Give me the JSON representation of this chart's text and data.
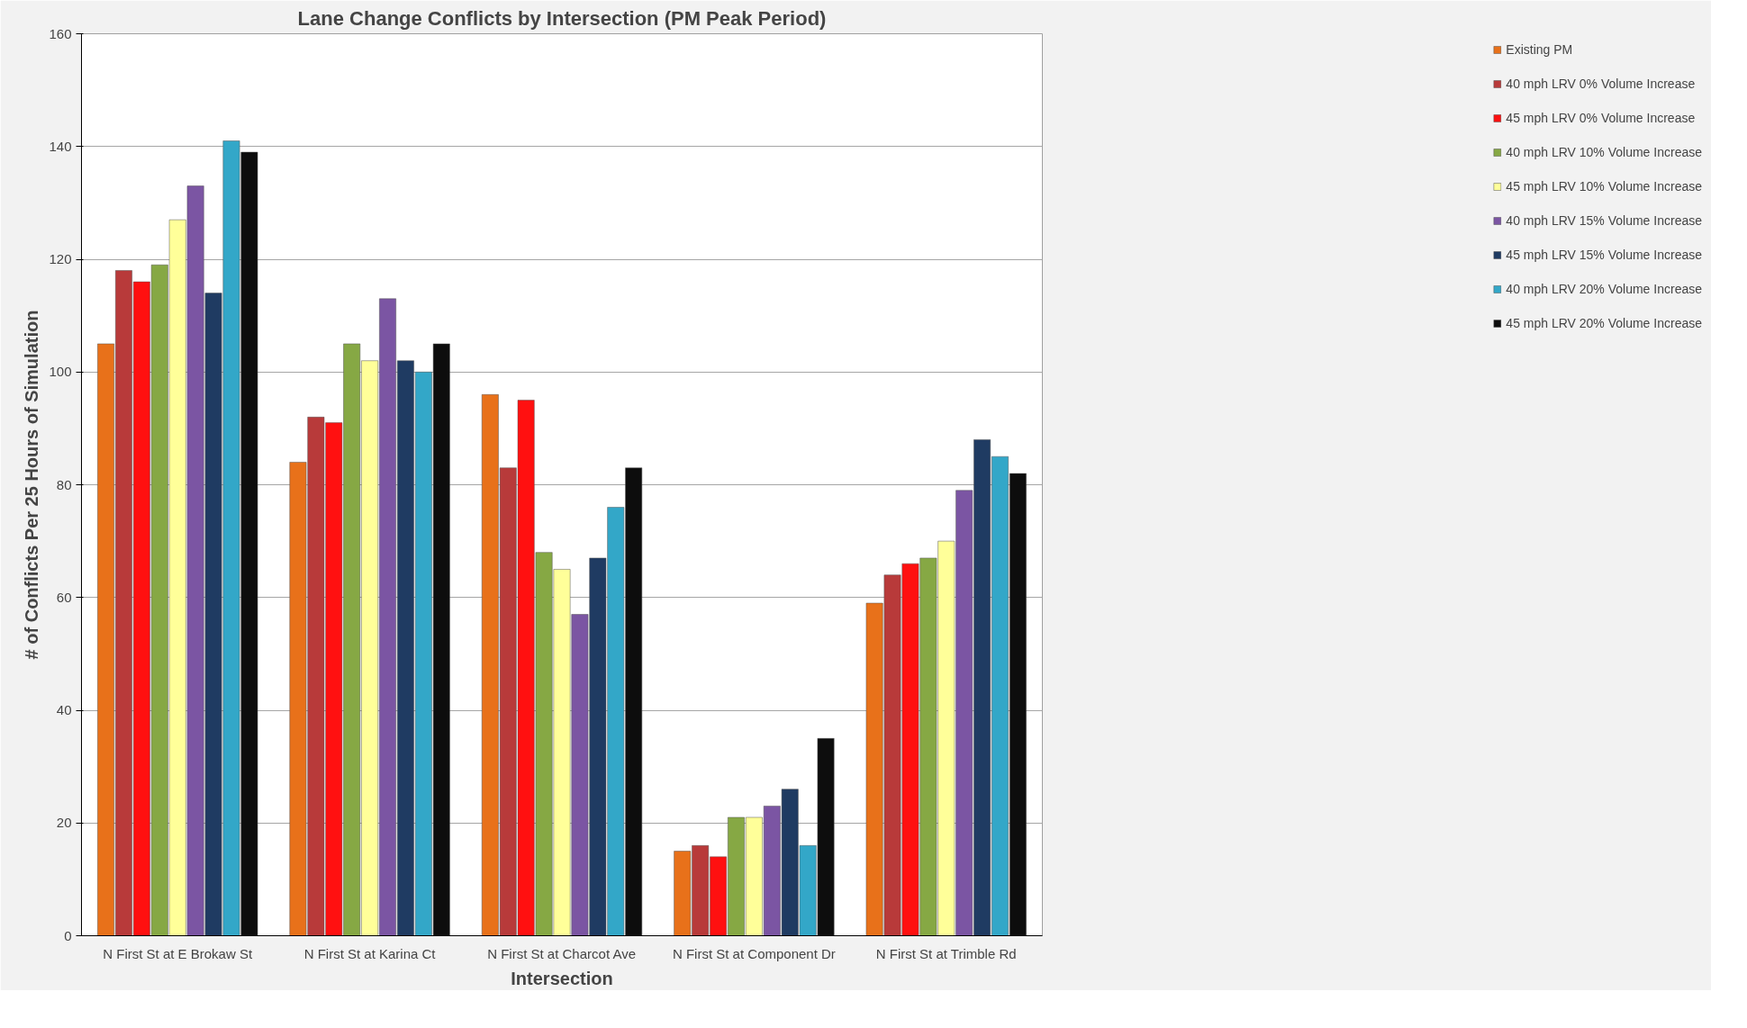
{
  "chart_data": {
    "type": "bar",
    "title": "Lane Change Conflicts by Intersection (PM Peak Period)",
    "xlabel": "Intersection",
    "ylabel": "# of Conflicts Per 25 Hours of Simulation",
    "categories": [
      "N First St at E Brokaw St",
      "N First St at Karina Ct",
      "N First St at Charcot Ave",
      "N First St at Component Dr",
      "N First St at Trimble Rd"
    ],
    "series": [
      {
        "name": "Existing PM",
        "color": "#e8711a",
        "values": [
          105,
          84,
          96,
          15,
          59
        ]
      },
      {
        "name": "40 mph LRV 0% Volume Increase",
        "color": "#b83a3a",
        "values": [
          118,
          92,
          83,
          16,
          64
        ]
      },
      {
        "name": "45 mph LRV 0% Volume Increase",
        "color": "#ff1010",
        "values": [
          116,
          91,
          95,
          14,
          66
        ]
      },
      {
        "name": "40 mph LRV 10% Volume Increase",
        "color": "#86a844",
        "values": [
          119,
          105,
          68,
          21,
          67
        ]
      },
      {
        "name": "45 mph LRV 10% Volume Increase",
        "color": "#ffff99",
        "values": [
          127,
          102,
          65,
          21,
          70
        ]
      },
      {
        "name": "40 mph LRV 15% Volume Increase",
        "color": "#7b55a3",
        "values": [
          133,
          113,
          57,
          23,
          79
        ]
      },
      {
        "name": "45 mph LRV 15% Volume Increase",
        "color": "#1f3b62",
        "values": [
          114,
          102,
          67,
          26,
          88
        ]
      },
      {
        "name": "40 mph LRV 20% Volume Increase",
        "color": "#33a7c8",
        "values": [
          141,
          100,
          76,
          16,
          85
        ]
      },
      {
        "name": "45 mph LRV 20% Volume Increase",
        "color": "#0d0d0d",
        "values": [
          139,
          105,
          83,
          35,
          82
        ]
      }
    ],
    "ylim": [
      0,
      160
    ],
    "yticks": [
      0,
      20,
      40,
      60,
      80,
      100,
      120,
      140,
      160
    ],
    "grid": "y",
    "legend": "right"
  }
}
